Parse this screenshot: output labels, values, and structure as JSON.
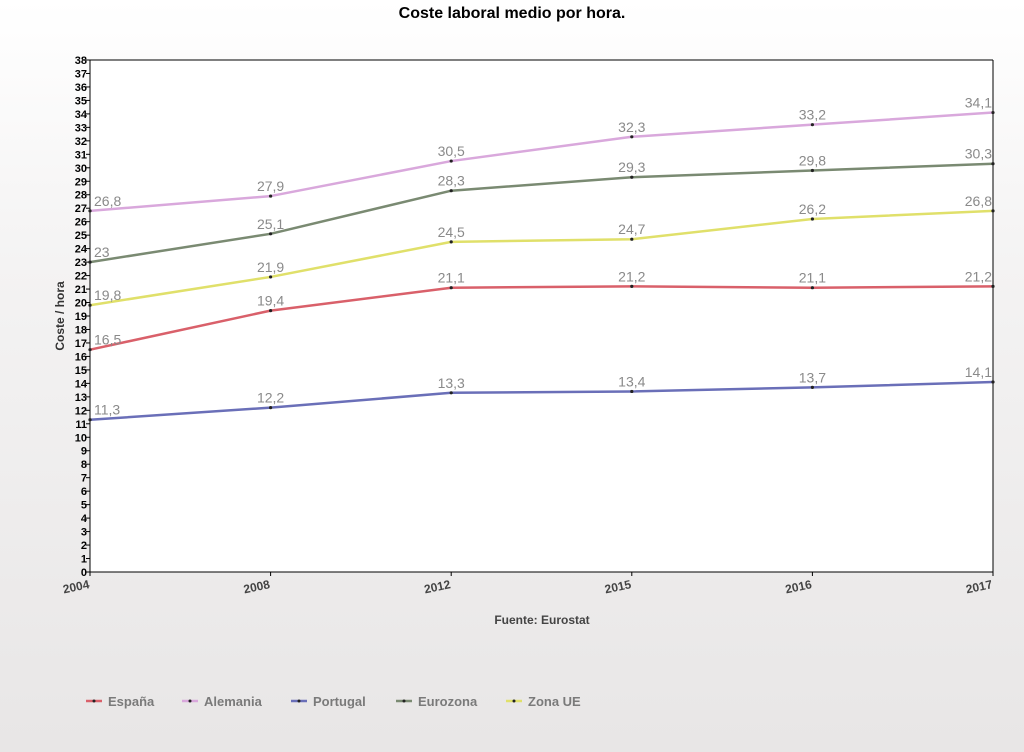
{
  "chart_data": {
    "type": "line",
    "title": "Coste laboral medio por hora.",
    "ylabel": "Coste / hora",
    "source": "Fuente: Eurostat",
    "categories": [
      "2004",
      "2008",
      "2012",
      "2015",
      "2016",
      "2017"
    ],
    "ylim": [
      0,
      38
    ],
    "ytick_step": 1,
    "legend_position": "bottom-left",
    "series": [
      {
        "name": "España",
        "color": "#d9606a",
        "values": [
          16.5,
          19.4,
          21.1,
          21.2,
          21.1,
          21.2
        ],
        "labels": [
          "16,5",
          "19,4",
          "21,1",
          "21,2",
          "21,1",
          "21,2"
        ]
      },
      {
        "name": "Alemania",
        "color": "#d9a8dc",
        "values": [
          26.8,
          27.9,
          30.5,
          32.3,
          33.2,
          34.1
        ],
        "labels": [
          "26,8",
          "27,9",
          "30,5",
          "32,3",
          "33,2",
          "34,1"
        ]
      },
      {
        "name": "Portugal",
        "color": "#6a6fb8",
        "values": [
          11.3,
          12.2,
          13.3,
          13.4,
          13.7,
          14.1
        ],
        "labels": [
          "11,3",
          "12,2",
          "13,3",
          "13,4",
          "13,7",
          "14,1"
        ]
      },
      {
        "name": "Eurozona",
        "color": "#7a8a72",
        "values": [
          23,
          25.1,
          28.3,
          29.3,
          29.8,
          30.3
        ],
        "labels": [
          "23",
          "25,1",
          "28,3",
          "29,3",
          "29,8",
          "30,3"
        ]
      },
      {
        "name": "Zona UE",
        "color": "#e0e06a",
        "values": [
          19.8,
          21.9,
          24.5,
          24.7,
          26.2,
          26.8
        ],
        "labels": [
          "19,8",
          "21,9",
          "24,5",
          "24,7",
          "26,2",
          "26,8"
        ]
      }
    ]
  }
}
